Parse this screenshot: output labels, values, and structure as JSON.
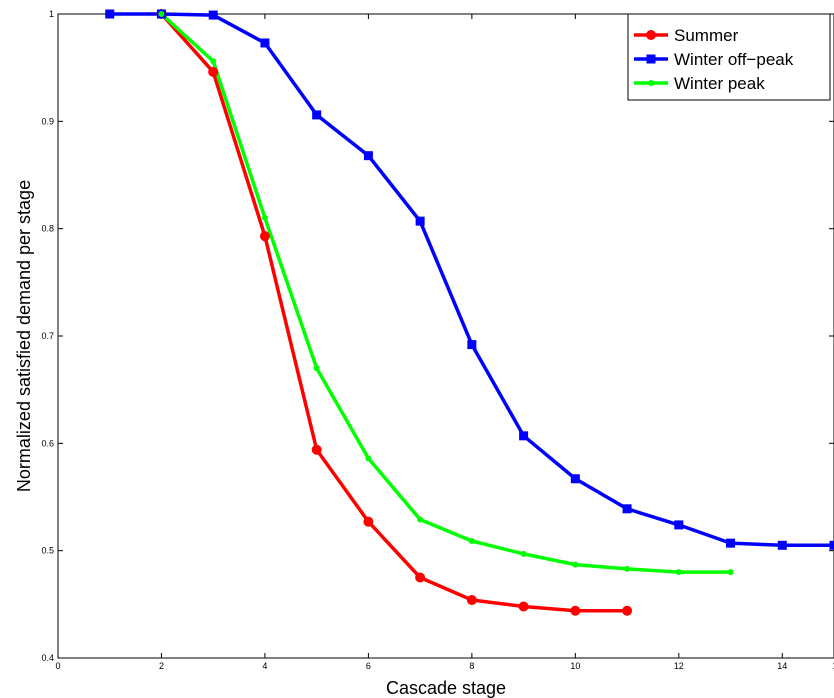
{
  "chart_data": {
    "type": "line",
    "title": "",
    "xlabel": "Cascade stage",
    "ylabel": "Normalized satisfied demand per stage",
    "xlim": [
      0,
      15
    ],
    "ylim": [
      0.4,
      1.0
    ],
    "xticks": [
      0,
      2,
      4,
      6,
      8,
      10,
      12,
      14
    ],
    "xtick_labels": [
      "0",
      "2",
      "4",
      "6",
      "8",
      "10",
      "12",
      "14"
    ],
    "yticks": [
      0.4,
      0.5,
      0.6,
      0.7,
      0.8,
      0.9,
      1.0
    ],
    "ytick_labels": [
      "0.4",
      "0.5",
      "0.6",
      "0.7",
      "0.8",
      "0.9",
      "1"
    ],
    "edge_tick_label": "1",
    "grid": false,
    "legend_position": "top-right",
    "series": [
      {
        "name": "Summer",
        "color": "#ff0000",
        "marker": "circle",
        "x": [
          2,
          3,
          4,
          5,
          6,
          7,
          8,
          9,
          10,
          11
        ],
        "values": [
          1.0,
          0.946,
          0.793,
          0.594,
          0.527,
          0.475,
          0.454,
          0.448,
          0.444,
          0.444
        ]
      },
      {
        "name": "Winter off−peak",
        "color": "#0000ff",
        "marker": "square",
        "x": [
          1,
          2,
          3,
          4,
          5,
          6,
          7,
          8,
          9,
          10,
          11,
          12,
          13,
          14,
          15
        ],
        "values": [
          1.0,
          1.0,
          0.999,
          0.973,
          0.906,
          0.868,
          0.807,
          0.692,
          0.607,
          0.567,
          0.539,
          0.524,
          0.507,
          0.505,
          0.505
        ]
      },
      {
        "name": "Winter peak",
        "color": "#00ff00",
        "marker": "dot",
        "x": [
          2,
          3,
          4,
          5,
          6,
          7,
          8,
          9,
          10,
          11,
          12,
          13
        ],
        "values": [
          1.0,
          0.956,
          0.81,
          0.67,
          0.586,
          0.529,
          0.509,
          0.497,
          0.487,
          0.483,
          0.48,
          0.48
        ]
      }
    ]
  }
}
